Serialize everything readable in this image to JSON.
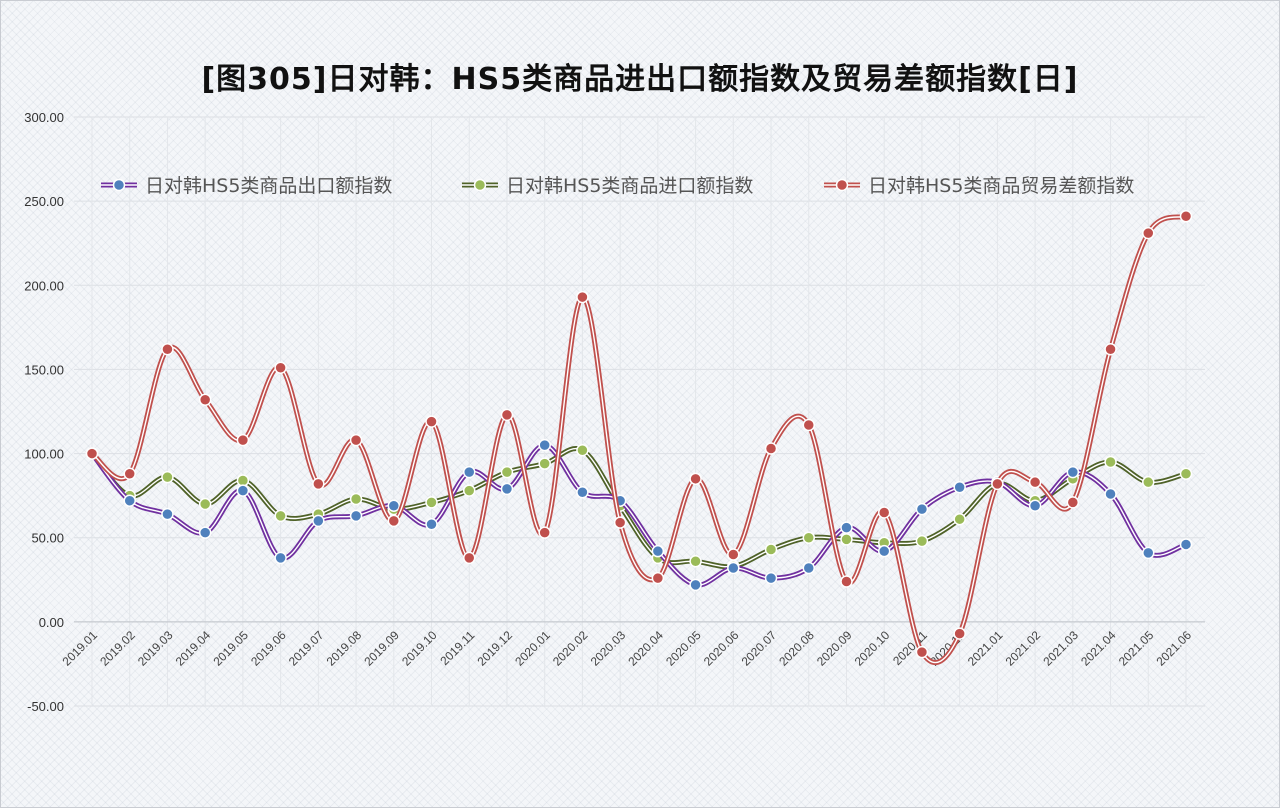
{
  "title": "[图305]日对韩：HS5类商品进出口额指数及贸易差额指数[日]",
  "chart_data": {
    "type": "line",
    "title": "[图305]日对韩：HS5类商品进出口额指数及贸易差额指数[日]",
    "categories": [
      "2019.01",
      "2019.02",
      "2019.03",
      "2019.04",
      "2019.05",
      "2019.06",
      "2019.07",
      "2019.08",
      "2019.09",
      "2019.10",
      "2019.11",
      "2019.12",
      "2020.01",
      "2020.02",
      "2020.03",
      "2020.04",
      "2020.05",
      "2020.06",
      "2020.07",
      "2020.08",
      "2020.09",
      "2020.10",
      "2020.11",
      "2020.12",
      "2021.01",
      "2021.02",
      "2021.03",
      "2021.04",
      "2021.05",
      "2021.06"
    ],
    "ylim": [
      -50,
      300
    ],
    "yticks": [
      "300.00",
      "250.00",
      "200.00",
      "150.00",
      "100.00",
      "50.00",
      "0.00",
      "-50.00"
    ],
    "ytick_values": [
      300,
      250,
      200,
      150,
      100,
      50,
      0,
      -50
    ],
    "grid": true,
    "legend_position": "top",
    "series": [
      {
        "name": "日对韩HS5类商品出口额指数",
        "line_color": "#7030a0",
        "marker_color": "#4f81bd",
        "values": [
          100,
          72,
          64,
          53,
          78,
          38,
          60,
          63,
          69,
          58,
          89,
          79,
          105,
          77,
          72,
          42,
          22,
          32,
          26,
          32,
          56,
          42,
          67,
          80,
          83,
          69,
          89,
          76,
          41,
          46
        ]
      },
      {
        "name": "日对韩HS5类商品进口额指数",
        "line_color": "#4f6228",
        "marker_color": "#9bbb59",
        "values": [
          100,
          75,
          86,
          70,
          84,
          63,
          64,
          73,
          67,
          71,
          78,
          89,
          94,
          102,
          69,
          38,
          36,
          33,
          43,
          50,
          49,
          47,
          48,
          61,
          82,
          72,
          85,
          95,
          83,
          88
        ]
      },
      {
        "name": "日对韩HS5类商品贸易差额指数",
        "line_color": "#c0504d",
        "marker_color": "#c0504d",
        "values": [
          100,
          88,
          162,
          132,
          108,
          151,
          82,
          108,
          60,
          119,
          38,
          123,
          53,
          193,
          59,
          26,
          85,
          40,
          103,
          117,
          24,
          65,
          -18,
          -7,
          82,
          83,
          71,
          162,
          231,
          241
        ]
      }
    ]
  }
}
